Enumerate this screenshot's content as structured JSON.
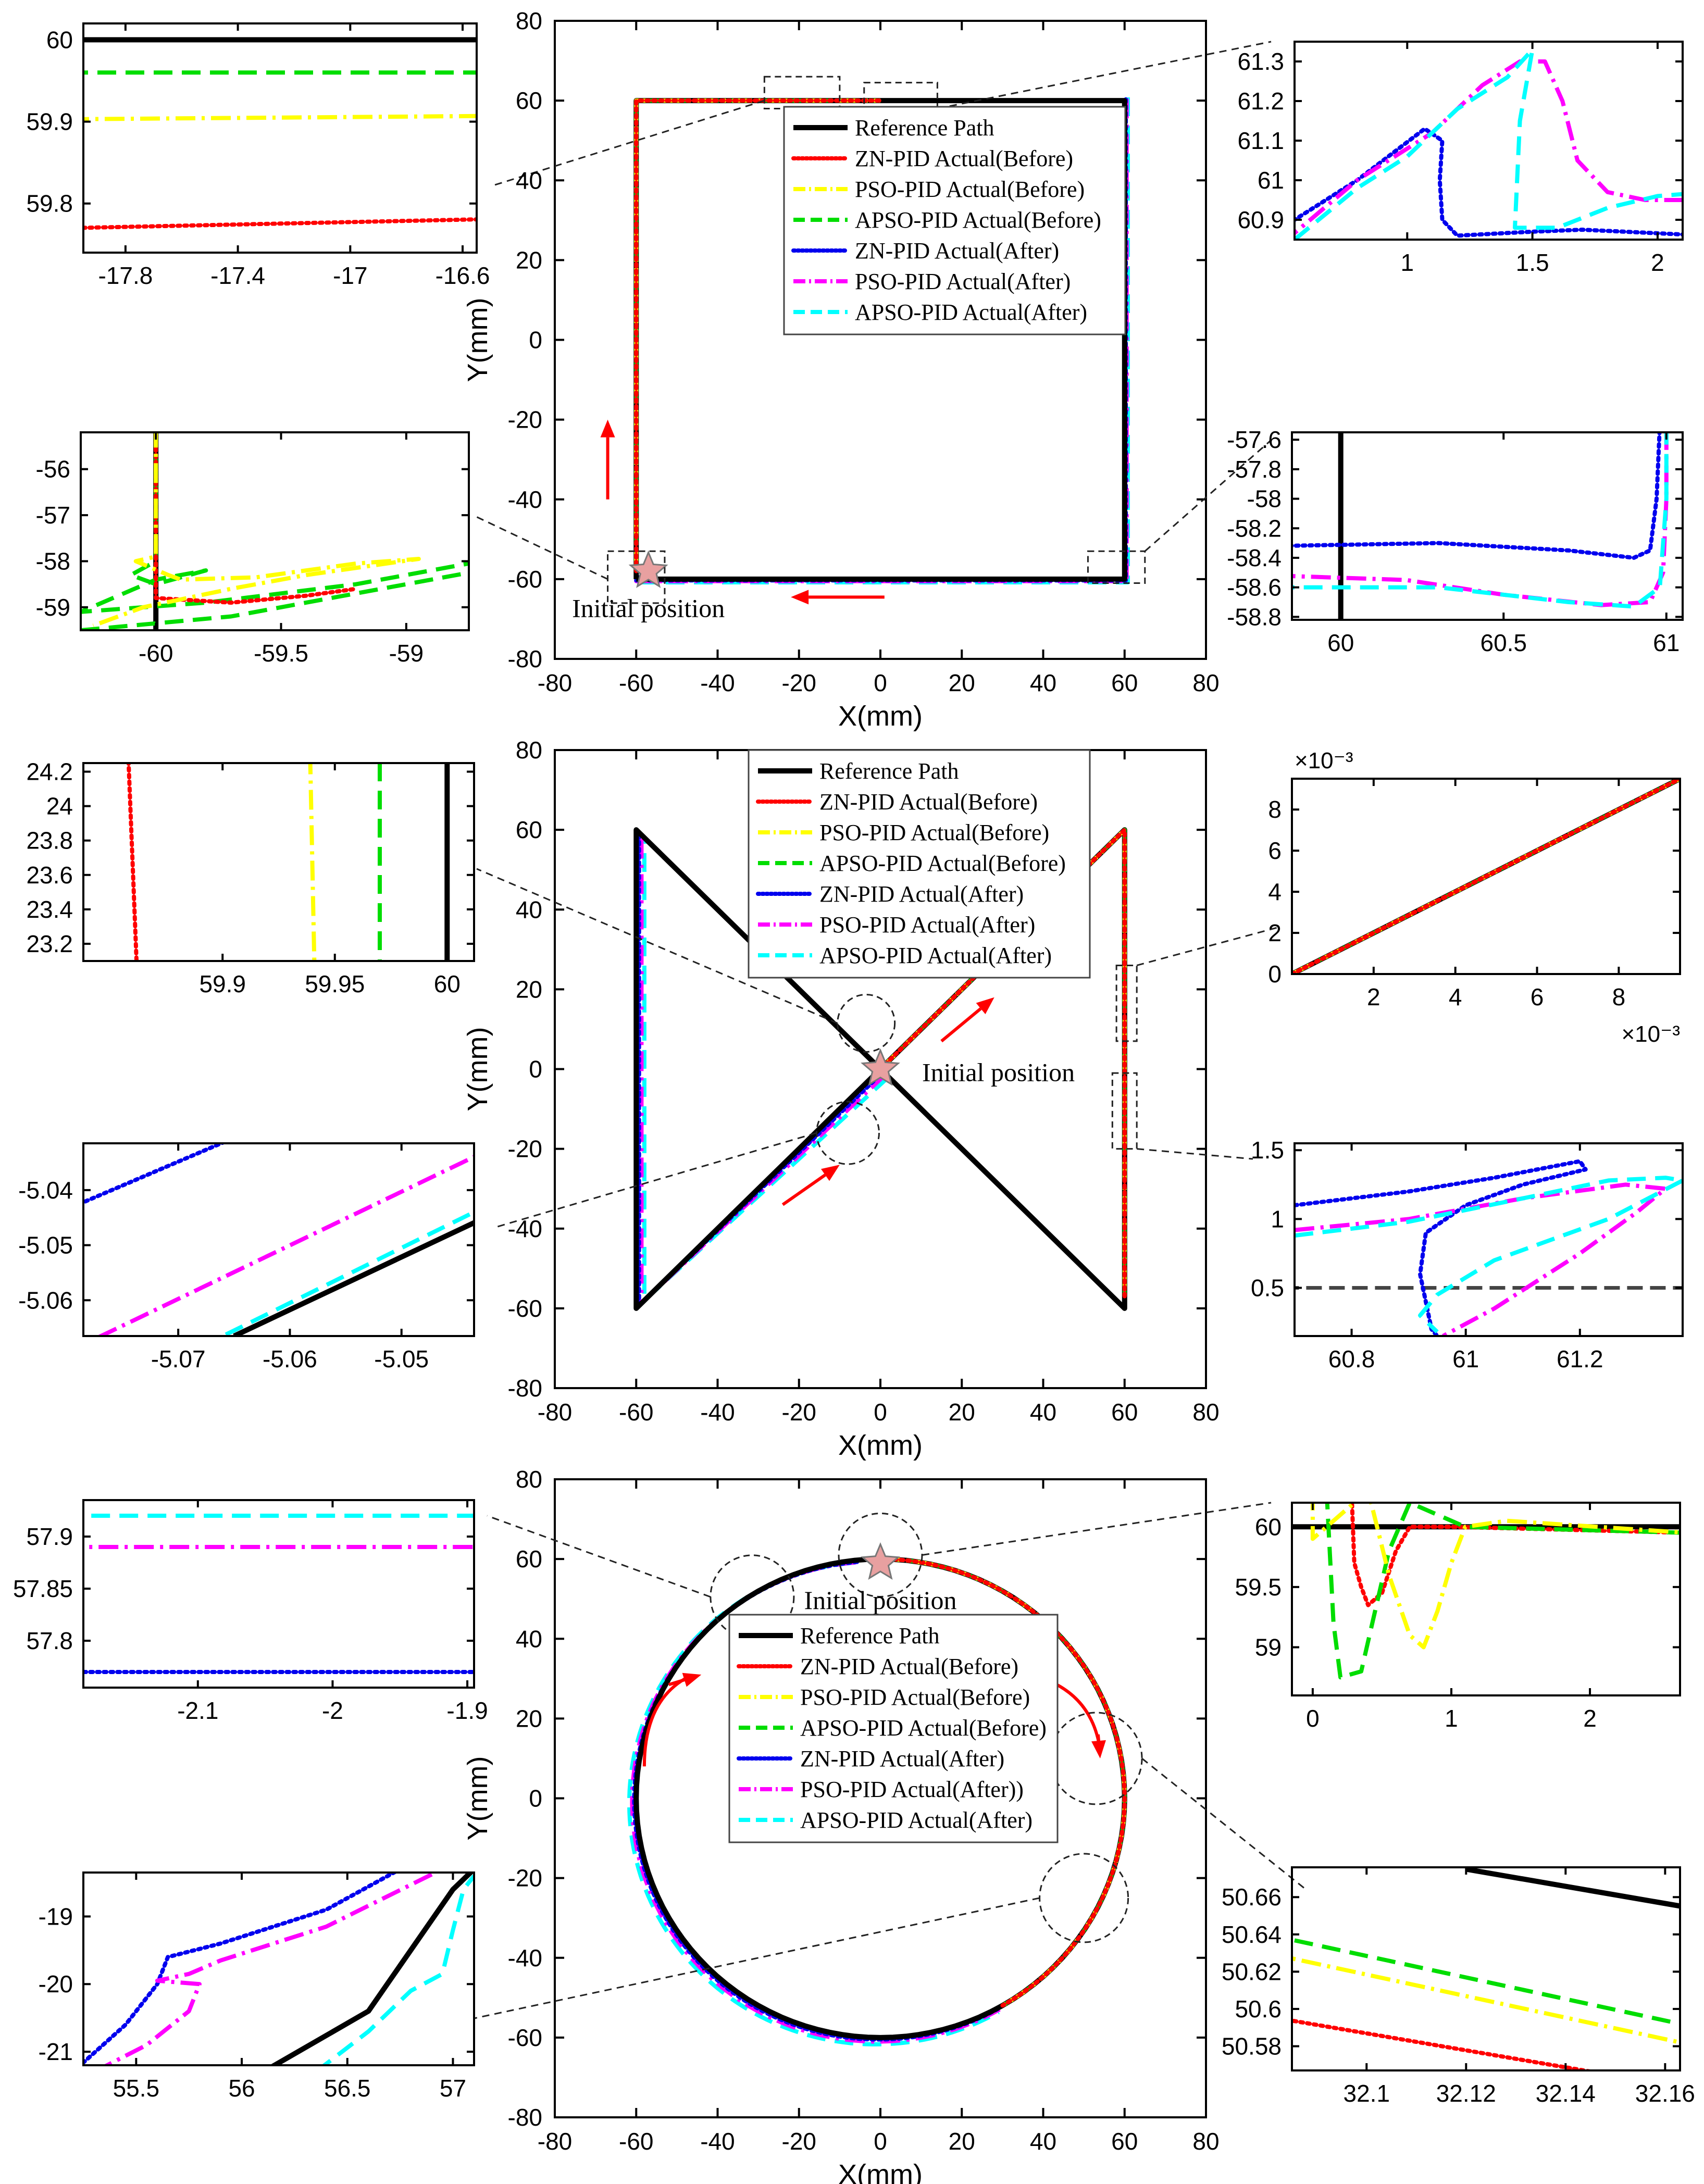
{
  "chart_data": [
    {
      "id": "main1",
      "type": "line",
      "xlabel": "X(mm)",
      "ylabel": "Y(mm)",
      "xlim": [
        -80,
        80
      ],
      "ylim": [
        -80,
        80
      ],
      "xticks": [
        -80,
        -60,
        -40,
        -20,
        0,
        20,
        40,
        60,
        80
      ],
      "yticks": [
        -80,
        -60,
        -40,
        -20,
        0,
        20,
        40,
        60,
        80
      ],
      "annotation": "Initial position",
      "legend": [
        "Reference Path",
        "ZN-PID Actual(Before)",
        "PSO-PID Actual(Before)",
        "APSO-PID Actual(Before)",
        "ZN-PID Actual(After)",
        "PSO-PID Actual(After)",
        "APSO-PID Actual(After)"
      ],
      "reference_path": {
        "x": [
          -60,
          -60,
          60,
          60,
          -60
        ],
        "y": [
          -60,
          60,
          60,
          -60,
          -60
        ]
      }
    },
    {
      "id": "main2",
      "type": "line",
      "xlabel": "X(mm)",
      "ylabel": "Y(mm)",
      "xlim": [
        -80,
        80
      ],
      "ylim": [
        -80,
        80
      ],
      "xticks": [
        -80,
        -60,
        -40,
        -20,
        0,
        20,
        40,
        60,
        80
      ],
      "yticks": [
        -80,
        -60,
        -40,
        -20,
        0,
        20,
        40,
        60,
        80
      ],
      "annotation": "Initial position",
      "legend": [
        "Reference Path",
        "ZN-PID Actual(Before)",
        "PSO-PID Actual(Before)",
        "APSO-PID Actual(Before)",
        "ZN-PID Actual(After)",
        "PSO-PID Actual(After)",
        "APSO-PID Actual(After)"
      ],
      "reference_path": {
        "x": [
          0,
          60,
          60,
          -60,
          -60,
          0
        ],
        "y": [
          0,
          60,
          -60,
          60,
          -60,
          0
        ]
      }
    },
    {
      "id": "main3",
      "type": "line",
      "xlabel": "X(mm)",
      "ylabel": "Y(mm)",
      "xlim": [
        -80,
        80
      ],
      "ylim": [
        -80,
        80
      ],
      "xtick_labels": [
        "-80",
        "-60",
        "-40",
        "-20",
        "0",
        "20",
        "40",
        "60",
        "80"
      ],
      "yticks": [
        -80,
        -60,
        -40,
        -20,
        0,
        20,
        40,
        60,
        80
      ],
      "annotation": "Initial position",
      "legend": [
        "Reference Path",
        "ZN-PID Actual(Before)",
        "PSO-PID Actual(Before)",
        "APSO-PID Actual(Before)",
        "ZN-PID Actual(After)",
        "PSO-PID Actual(After))",
        "APSO-PID Actual(After)"
      ],
      "reference_path": {
        "shape": "circle",
        "center": [
          0,
          0
        ],
        "radius": 60
      }
    },
    {
      "id": "z1l",
      "type": "line",
      "xticks": [
        "-17.8",
        "-17.4",
        "-17",
        "-16.6"
      ],
      "yticks": [
        "60",
        "59.9",
        "59.8"
      ],
      "series": [
        {
          "name": "Reference Path",
          "y": 60.0
        },
        {
          "name": "APSO-PID Actual(Before)",
          "y": 59.96
        },
        {
          "name": "PSO-PID Actual(Before)",
          "y": 59.905
        },
        {
          "name": "ZN-PID Actual(Before)",
          "y": [
            59.77,
            59.78
          ]
        }
      ]
    },
    {
      "id": "z1r",
      "type": "line",
      "xticks": [
        "1",
        "1.5",
        "2"
      ],
      "yticks": [
        "61.3",
        "61.2",
        "61.1",
        "61",
        "60.9"
      ],
      "peak": {
        "series": "PSO-PID Actual(After)",
        "x": 1.5,
        "y": 61.33
      }
    },
    {
      "id": "z2l",
      "type": "line",
      "xticks": [
        "-60",
        "-59.5",
        "-59"
      ],
      "yticks": [
        "-56",
        "-57",
        "-58",
        "-59"
      ]
    },
    {
      "id": "z2r",
      "type": "line",
      "xticks": [
        "60",
        "60.5",
        "61"
      ],
      "yticks": [
        "-57.6",
        "-57.8",
        "-58",
        "-58.2",
        "-58.4",
        "-58.6",
        "-58.8"
      ]
    },
    {
      "id": "z3l",
      "type": "line",
      "xticks": [
        "59.9",
        "59.95",
        "60"
      ],
      "yticks": [
        "24.2",
        "24",
        "23.8",
        "23.6",
        "23.4",
        "23.2"
      ],
      "series": [
        {
          "name": "Reference Path",
          "x": 60.0
        },
        {
          "name": "APSO-PID Actual(Before)",
          "x": 59.97
        },
        {
          "name": "PSO-PID Actual(Before)",
          "x": 59.94
        },
        {
          "name": "ZN-PID Actual(Before)",
          "x": [
            59.86,
            59.865
          ]
        }
      ]
    },
    {
      "id": "z3r",
      "type": "line",
      "xticks": [
        "2",
        "4",
        "6",
        "8"
      ],
      "yticks": [
        "0",
        "2",
        "4",
        "6",
        "8"
      ],
      "x_exponent": "×10⁻³",
      "y_exponent": "×10⁻³"
    },
    {
      "id": "z4l",
      "type": "line",
      "xticks": [
        "-5.07",
        "-5.06",
        "-5.05"
      ],
      "yticks": [
        "-5.04",
        "-5.05",
        "-5.06"
      ]
    },
    {
      "id": "z4r",
      "type": "line",
      "xticks": [
        "60.8",
        "61",
        "61.2"
      ],
      "yticks": [
        "1.5",
        "1",
        "0.5"
      ],
      "reference_level": 0.5
    },
    {
      "id": "z5l",
      "type": "line",
      "xticks": [
        "-2.1",
        "-2",
        "-1.9"
      ],
      "yticks": [
        "57.9",
        "57.85",
        "57.8"
      ],
      "series": [
        {
          "name": "APSO-PID Actual(After)",
          "y": 57.92
        },
        {
          "name": "PSO-PID Actual(After))",
          "y": 57.89
        },
        {
          "name": "ZN-PID Actual(After)",
          "y": 57.77
        }
      ]
    },
    {
      "id": "z5r",
      "type": "line",
      "xticks": [
        "0",
        "1",
        "2"
      ],
      "yticks": [
        "60",
        "59.5",
        "59"
      ]
    },
    {
      "id": "z6l",
      "type": "line",
      "xticks": [
        "55.5",
        "56",
        "56.5",
        "57"
      ],
      "yticks": [
        "-19",
        "-20",
        "-21"
      ]
    },
    {
      "id": "z6r",
      "type": "line",
      "xticks": [
        "32.1",
        "32.12",
        "32.14",
        "32.16"
      ],
      "yticks": [
        "50.66",
        "50.64",
        "50.62",
        "50.6",
        "50.58"
      ]
    }
  ],
  "styles": {
    "Reference Path": "#000000",
    "ZN-PID Actual(Before)": "#ff0000",
    "PSO-PID Actual(Before)": "#ffff00",
    "APSO-PID Actual(Before)": "#00dd00",
    "ZN-PID Actual(After)": "#0000ee",
    "PSO-PID Actual(After)": "#ff00ff",
    "APSO-PID Actual(After)": "#00ffff",
    "arrow": "#ff0000",
    "star": "#e8a0a0"
  }
}
